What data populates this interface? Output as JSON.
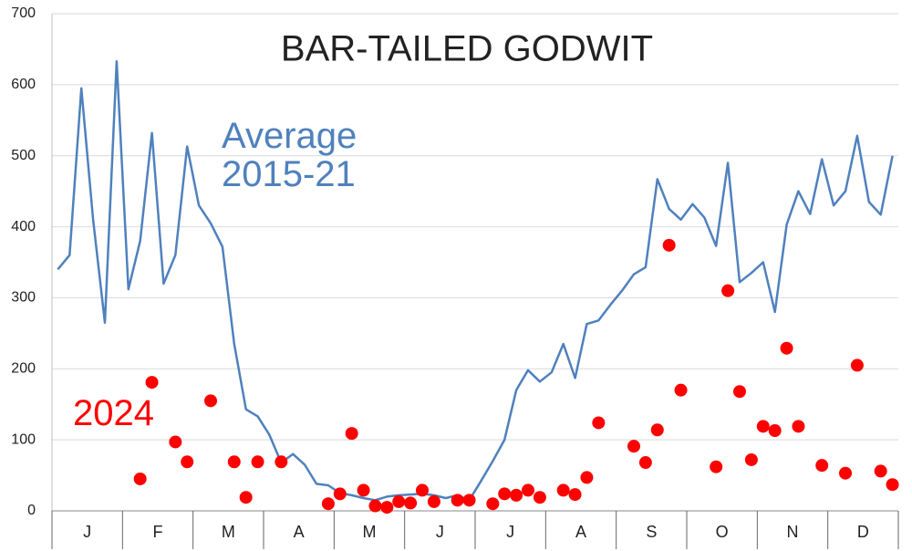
{
  "chart_data": {
    "type": "line+scatter",
    "title": "BAR-TAILED GODWIT",
    "months": [
      "J",
      "F",
      "M",
      "A",
      "M",
      "J",
      "J",
      "A",
      "S",
      "O",
      "N",
      "D"
    ],
    "ylim": [
      0,
      700
    ],
    "yticks": [
      0,
      100,
      200,
      300,
      400,
      500,
      600,
      700
    ],
    "grid": true,
    "series": [
      {
        "name": "Average 2015-21",
        "type": "line",
        "color": "#4f81bd",
        "values": [
          340,
          360,
          595,
          410,
          265,
          633,
          312,
          380,
          532,
          320,
          360,
          513,
          430,
          405,
          372,
          235,
          143,
          133,
          107,
          68,
          80,
          65,
          38,
          36,
          25,
          22,
          18,
          15,
          20,
          22,
          23,
          24,
          22,
          18,
          22,
          15,
          42,
          70,
          100,
          170,
          198,
          182,
          195,
          235,
          187,
          263,
          268,
          290,
          310,
          333,
          343,
          467,
          425,
          410,
          432,
          413,
          373,
          490,
          322,
          335,
          350,
          280,
          403,
          450,
          418,
          495,
          430,
          450,
          528,
          435,
          417,
          500
        ]
      },
      {
        "name": "2024",
        "type": "scatter",
        "color": "#ff0000",
        "values": [
          null,
          null,
          null,
          null,
          null,
          null,
          null,
          45,
          181,
          null,
          97,
          69,
          null,
          155,
          null,
          69,
          19,
          69,
          null,
          69,
          null,
          null,
          null,
          10,
          24,
          109,
          29,
          7,
          5,
          13,
          11,
          29,
          13,
          null,
          15,
          15,
          null,
          10,
          24,
          22,
          29,
          19,
          null,
          29,
          23,
          47,
          124,
          null,
          null,
          91,
          68,
          114,
          374,
          170,
          null,
          null,
          62,
          310,
          168,
          72,
          119,
          113,
          229,
          119,
          null,
          64,
          null,
          53,
          205,
          null,
          56,
          37
        ]
      }
    ]
  }
}
